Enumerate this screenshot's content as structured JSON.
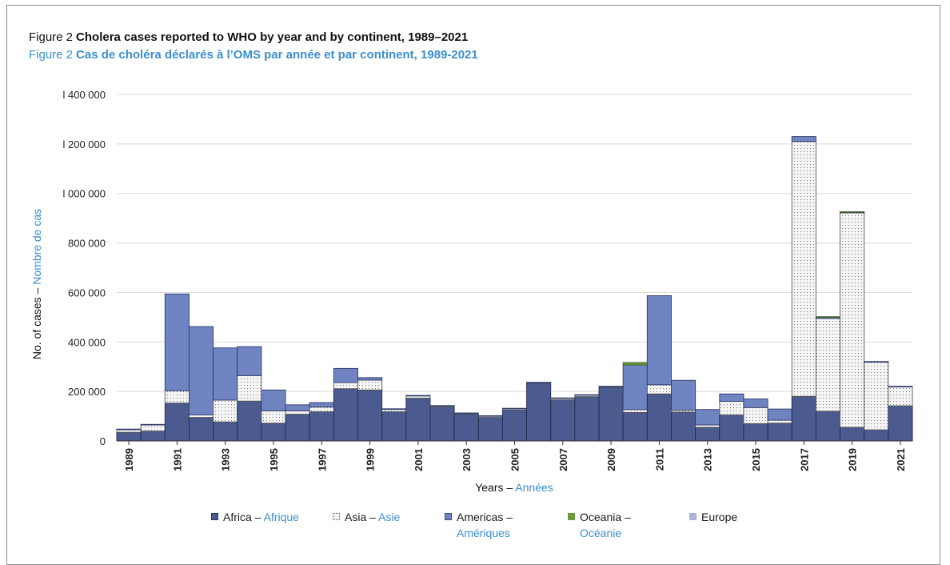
{
  "titles": {
    "fig_label_en": "Figure 2",
    "title_en": "Cholera cases reported to WHO by year and by continent, 1989–2021",
    "fig_label_fr": "Figure 2",
    "title_fr": "Cas de choléra déclarés à l’OMS par année et par continent, 1989-2021"
  },
  "axes": {
    "ylabel_en": "No. of cases – ",
    "ylabel_fr": "Nombre de cas",
    "xlabel_en": "Years – ",
    "xlabel_fr": "Années"
  },
  "legend": {
    "africa_en": "Africa – ",
    "africa_fr": "Afrique",
    "asia_en": "Asia – ",
    "asia_fr": "Asie",
    "americas_en": "Americas –",
    "americas_fr": "Amériques",
    "oceania_en": "Oceania –",
    "oceania_fr": "Océanie",
    "europe": "Europe"
  },
  "colors": {
    "africa": "#4b5b8f",
    "asia": "#f2f2f2",
    "americas": "#7084c2",
    "oceania": "#6a9a3e",
    "europe": "#aab3d6",
    "grid": "#d9d9d9",
    "french_text": "#3a8fd1"
  },
  "chart_data": {
    "type": "bar",
    "stacked": true,
    "title": "Cholera cases reported to WHO by year and by continent, 1989–2021",
    "xlabel": "Years – Années",
    "ylabel": "No. of cases – Nombre de cas",
    "ylim": [
      0,
      1400000
    ],
    "y_ticks": [
      0,
      200000,
      400000,
      600000,
      800000,
      1000000,
      1200000,
      1400000
    ],
    "y_tick_labels": [
      "0",
      "200 000",
      "400 000",
      "600 000",
      "800 000",
      "l 000 000",
      "l 200 000",
      "l 400 000"
    ],
    "grid": true,
    "legend_position": "bottom",
    "categories": [
      "1989",
      "1990",
      "1991",
      "1992",
      "1993",
      "1994",
      "1995",
      "1996",
      "1997",
      "1998",
      "1999",
      "2000",
      "2001",
      "2002",
      "2003",
      "2004",
      "2005",
      "2006",
      "2007",
      "2008",
      "2009",
      "2010",
      "2011",
      "2012",
      "2013",
      "2014",
      "2015",
      "2016",
      "2017",
      "2018",
      "2019",
      "2020",
      "2021"
    ],
    "x_tick_labels": [
      "1989",
      "1991",
      "1993",
      "1995",
      "1997",
      "1999",
      "2001",
      "2003",
      "2005",
      "2007",
      "2009",
      "2011",
      "2013",
      "2015",
      "2017",
      "2019",
      "2021"
    ],
    "series": [
      {
        "name": "Africa – Afrique",
        "key": "africa",
        "values": [
          35000,
          40000,
          153000,
          95000,
          77000,
          161000,
          72000,
          108000,
          118000,
          211000,
          206000,
          118000,
          173000,
          137000,
          108000,
          95000,
          125000,
          234000,
          166000,
          179000,
          216000,
          115000,
          190000,
          117000,
          55000,
          105000,
          70000,
          72000,
          180000,
          120000,
          55000,
          45000,
          142000
        ]
      },
      {
        "name": "Asia – Asie",
        "key": "asia",
        "values": [
          12000,
          25000,
          50000,
          10000,
          88000,
          103000,
          50000,
          14000,
          19000,
          25000,
          40000,
          10000,
          10000,
          5000,
          4000,
          6000,
          6000,
          2000,
          7000,
          7000,
          4000,
          12000,
          37000,
          8000,
          10000,
          55000,
          65000,
          12000,
          1030000,
          375000,
          867000,
          275000,
          77000
        ]
      },
      {
        "name": "Americas – Amériques",
        "key": "americas",
        "values": [
          1000,
          2000,
          391000,
          357000,
          211000,
          117000,
          84000,
          24000,
          18000,
          57000,
          10000,
          2000,
          1000,
          1000,
          1000,
          1000,
          1000,
          1000,
          1000,
          1000,
          1000,
          180000,
          360000,
          120000,
          62000,
          30000,
          35000,
          45000,
          20000,
          6000,
          2000,
          1000,
          2000
        ]
      },
      {
        "name": "Oceania – Océanie",
        "key": "oceania",
        "values": [
          0,
          0,
          0,
          0,
          0,
          0,
          0,
          0,
          0,
          0,
          0,
          0,
          0,
          0,
          0,
          0,
          0,
          0,
          0,
          0,
          0,
          10000,
          0,
          0,
          0,
          0,
          0,
          0,
          0,
          1000,
          2000,
          0,
          0
        ]
      },
      {
        "name": "Europe",
        "key": "europe",
        "values": [
          0,
          0,
          0,
          0,
          0,
          0,
          0,
          0,
          0,
          0,
          0,
          0,
          0,
          0,
          0,
          0,
          0,
          0,
          0,
          0,
          0,
          0,
          0,
          0,
          0,
          0,
          0,
          0,
          0,
          0,
          0,
          0,
          0
        ]
      }
    ]
  }
}
